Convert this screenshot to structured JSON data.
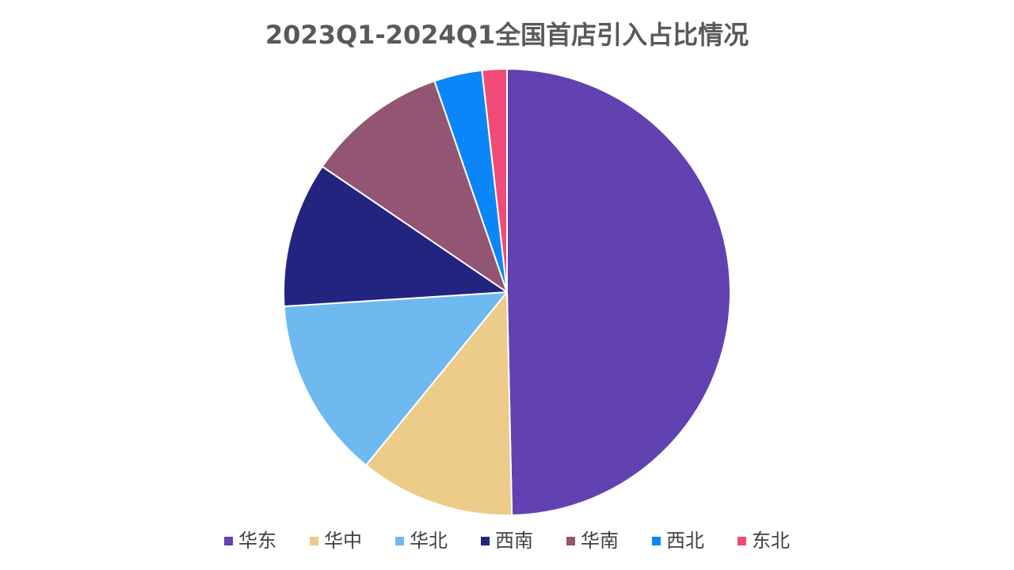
{
  "chart_data": {
    "type": "pie",
    "title": "2023Q1-2024Q1全国首店引入占比情况",
    "categories": [
      "华东",
      "华中",
      "华北",
      "西南",
      "华南",
      "西北",
      "东北"
    ],
    "values": [
      50.0,
      11.3,
      13.2,
      10.6,
      10.3,
      3.5,
      1.8
    ],
    "colors": [
      "#6241B0",
      "#EDCB88",
      "#6FB9F1",
      "#232380",
      "#925574",
      "#0A86F8",
      "#EF4C78"
    ],
    "legend_position": "bottom"
  }
}
